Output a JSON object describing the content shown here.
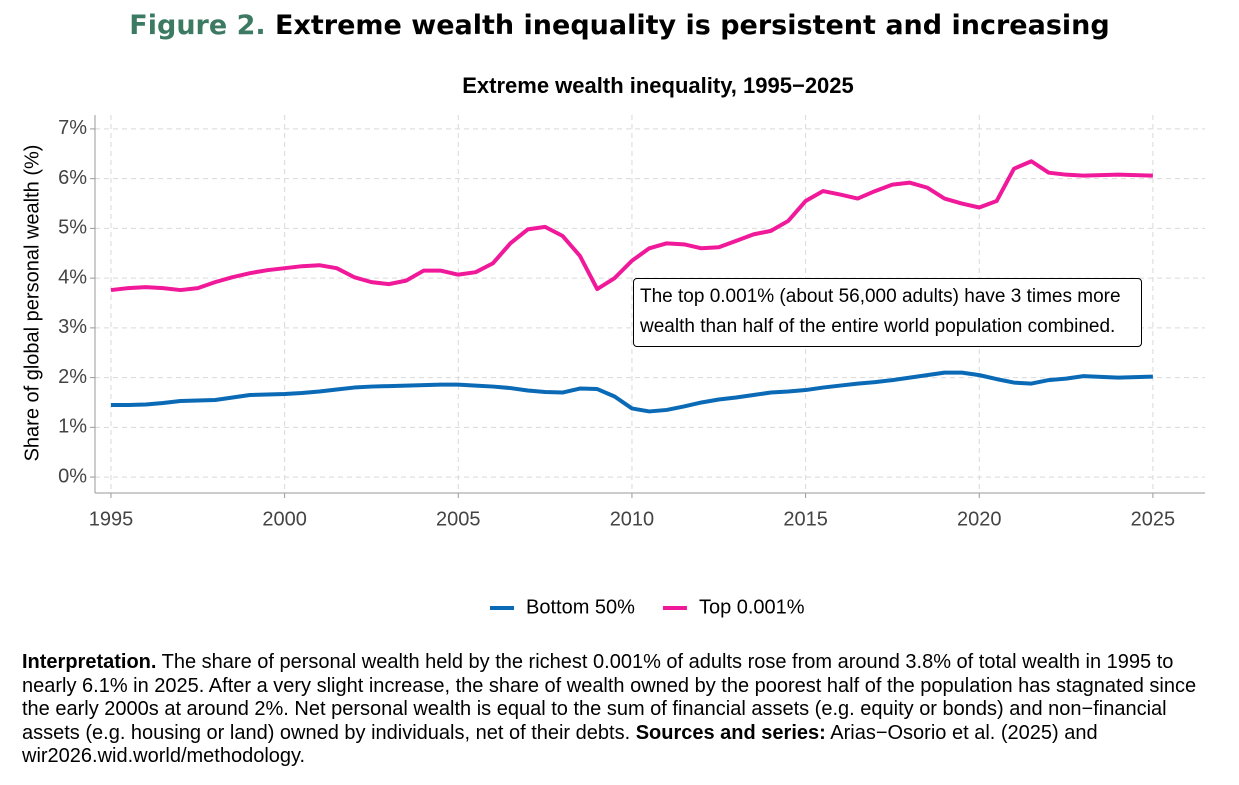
{
  "figure_label": "Figure 2.",
  "title": "Extreme wealth inequality is persistent and increasing",
  "chart_data": {
    "type": "line",
    "title": "Extreme wealth inequality, 1995−2025",
    "y_label": "Share of global personal wealth (%)",
    "annotation": "The top 0.001% (about 56,000 adults) have 3 times more wealth than half of the entire world population combined.",
    "x": [
      1995,
      1995.5,
      1996,
      1996.5,
      1997,
      1997.5,
      1998,
      1998.5,
      1999,
      1999.5,
      2000,
      2000.5,
      2001,
      2001.5,
      2002,
      2002.5,
      2003,
      2003.5,
      2004,
      2004.5,
      2005,
      2005.5,
      2006,
      2006.5,
      2007,
      2007.5,
      2008,
      2008.5,
      2009,
      2009.5,
      2010,
      2010.5,
      2011,
      2011.5,
      2012,
      2012.5,
      2013,
      2013.5,
      2014,
      2014.5,
      2015,
      2015.5,
      2016,
      2016.5,
      2017,
      2017.5,
      2018,
      2018.5,
      2019,
      2019.5,
      2020,
      2020.5,
      2021,
      2021.5,
      2022,
      2022.5,
      2023,
      2024,
      2025
    ],
    "series": [
      {
        "name": "Bottom 50%",
        "color": "#0a6ab6",
        "values": [
          1.45,
          1.45,
          1.46,
          1.49,
          1.53,
          1.54,
          1.55,
          1.6,
          1.65,
          1.66,
          1.67,
          1.69,
          1.72,
          1.76,
          1.8,
          1.82,
          1.83,
          1.84,
          1.85,
          1.86,
          1.86,
          1.84,
          1.82,
          1.79,
          1.74,
          1.71,
          1.7,
          1.78,
          1.77,
          1.62,
          1.38,
          1.32,
          1.35,
          1.42,
          1.5,
          1.56,
          1.6,
          1.65,
          1.7,
          1.72,
          1.75,
          1.8,
          1.84,
          1.88,
          1.91,
          1.95,
          2.0,
          2.05,
          2.1,
          2.1,
          2.05,
          1.97,
          1.9,
          1.88,
          1.95,
          1.98,
          2.03,
          2.0,
          2.02
        ]
      },
      {
        "name": "Top 0.001%",
        "color": "#f0199a",
        "values": [
          3.76,
          3.8,
          3.82,
          3.8,
          3.76,
          3.8,
          3.92,
          4.02,
          4.1,
          4.16,
          4.2,
          4.24,
          4.26,
          4.2,
          4.02,
          3.92,
          3.88,
          3.95,
          4.15,
          4.15,
          4.07,
          4.12,
          4.3,
          4.7,
          4.98,
          5.03,
          4.85,
          4.45,
          3.78,
          4.0,
          4.35,
          4.6,
          4.7,
          4.68,
          4.6,
          4.62,
          4.75,
          4.88,
          4.95,
          5.15,
          5.55,
          5.75,
          5.68,
          5.6,
          5.75,
          5.88,
          5.92,
          5.82,
          5.6,
          5.5,
          5.42,
          5.55,
          6.2,
          6.35,
          6.12,
          6.08,
          6.06,
          6.08,
          6.06
        ]
      }
    ],
    "xlim": [
      1994.54,
      2026.5
    ],
    "ylim": [
      -0.32,
      7.28
    ],
    "xticks": [
      1995,
      2000,
      2005,
      2010,
      2015,
      2020,
      2025
    ],
    "yticks": [
      {
        "value": 0,
        "label": "0%"
      },
      {
        "value": 1,
        "label": "1%"
      },
      {
        "value": 2,
        "label": "2%"
      },
      {
        "value": 3,
        "label": "3%"
      },
      {
        "value": 4,
        "label": "4%"
      },
      {
        "value": 5,
        "label": "5%"
      },
      {
        "value": 6,
        "label": "6%"
      },
      {
        "value": 7,
        "label": "7%"
      }
    ],
    "grid": true,
    "legend": "bottom"
  },
  "interpretation_label": "Interpretation.",
  "interpretation_text": "The share of personal wealth held by the richest 0.001% of adults rose from around 3.8% of total wealth in 1995 to nearly 6.1% in 2025. After a very slight increase, the share of wealth owned by the poorest half of the population has stagnated since the early 2000s at around 2%. Net personal wealth is equal to the sum of financial assets (e.g. equity or bonds) and non−financial assets (e.g. housing or land) owned by individuals, net of their debts.",
  "sources_label": "Sources and series:",
  "sources_text": "Arias−Osorio et al. (2025) and wir2026.wid.world/methodology."
}
